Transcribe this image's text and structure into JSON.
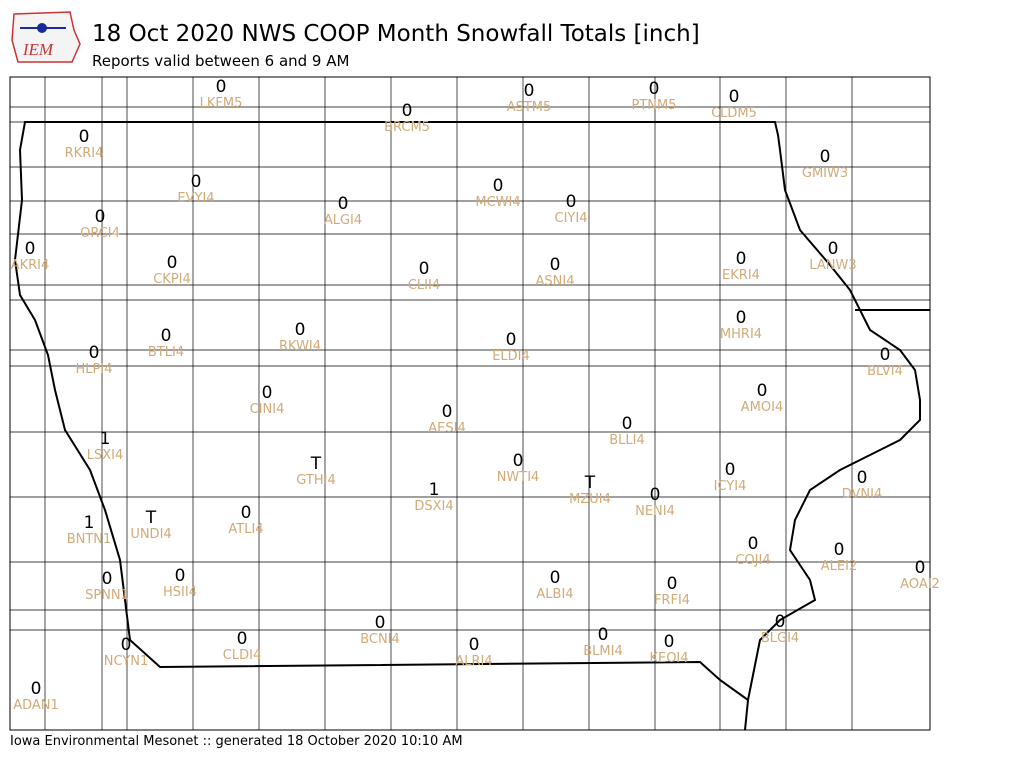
{
  "header": {
    "logo": "IEM",
    "title": "18 Oct 2020 NWS COOP Month Snowfall Totals [inch]",
    "subtitle": "Reports valid between 6 and 9 AM"
  },
  "stations": [
    {
      "id": "LKFM5",
      "value": 0
    },
    {
      "id": "BRCM5",
      "value": 0
    },
    {
      "id": "ASTM5",
      "value": 0
    },
    {
      "id": "PTNM5",
      "value": 0
    },
    {
      "id": "CLDM5",
      "value": 0
    },
    {
      "id": "RKRI4",
      "value": 0
    },
    {
      "id": "GMIW3",
      "value": 0
    },
    {
      "id": "EVYI4",
      "value": 0
    },
    {
      "id": "ALGI4",
      "value": 0
    },
    {
      "id": "MCWI4",
      "value": 0
    },
    {
      "id": "CIYI4",
      "value": 0
    },
    {
      "id": "ORCI4",
      "value": 0
    },
    {
      "id": "AKRI4",
      "value": 0
    },
    {
      "id": "CKPI4",
      "value": 0
    },
    {
      "id": "CLII4",
      "value": 0
    },
    {
      "id": "ASNI4",
      "value": 0
    },
    {
      "id": "EKRI4",
      "value": 0
    },
    {
      "id": "LANW3",
      "value": 0
    },
    {
      "id": "MHRI4",
      "value": 0
    },
    {
      "id": "BTLI4",
      "value": 0
    },
    {
      "id": "RKWI4",
      "value": 0
    },
    {
      "id": "ELDI4",
      "value": 0
    },
    {
      "id": "HLPI4",
      "value": 0
    },
    {
      "id": "BLVI4",
      "value": 0
    },
    {
      "id": "CINI4",
      "value": 0
    },
    {
      "id": "AMOI4",
      "value": 0
    },
    {
      "id": "AESI4",
      "value": 0
    },
    {
      "id": "BLLI4",
      "value": 0
    },
    {
      "id": "LSXI4",
      "value": 1
    },
    {
      "id": "GTHI4",
      "value": "T"
    },
    {
      "id": "NWTI4",
      "value": 0
    },
    {
      "id": "ICYI4",
      "value": 0
    },
    {
      "id": "DVNI4",
      "value": 0
    },
    {
      "id": "MZUI4",
      "value": "T"
    },
    {
      "id": "DSXI4",
      "value": 1
    },
    {
      "id": "NENI4",
      "value": 0
    },
    {
      "id": "ATLI4",
      "value": 0
    },
    {
      "id": "UNDI4",
      "value": "T"
    },
    {
      "id": "BNTN1",
      "value": 1
    },
    {
      "id": "COJI4",
      "value": 0
    },
    {
      "id": "ALEI2",
      "value": 0
    },
    {
      "id": "AOAI2",
      "value": 0
    },
    {
      "id": "SPNN1",
      "value": 0
    },
    {
      "id": "HSII4",
      "value": 0
    },
    {
      "id": "ALBI4",
      "value": 0
    },
    {
      "id": "FRFI4",
      "value": 0
    },
    {
      "id": "BLGI4",
      "value": 0
    },
    {
      "id": "BCNI4",
      "value": 0
    },
    {
      "id": "BLMI4",
      "value": 0
    },
    {
      "id": "KEOI4",
      "value": 0
    },
    {
      "id": "CLDI4",
      "value": 0
    },
    {
      "id": "NCYN1",
      "value": 0
    },
    {
      "id": "ALRI4",
      "value": 0
    },
    {
      "id": "ADAN1",
      "value": 0
    }
  ],
  "footer": "Iowa Environmental Mesonet :: generated 18 October 2020 10:10 AM"
}
